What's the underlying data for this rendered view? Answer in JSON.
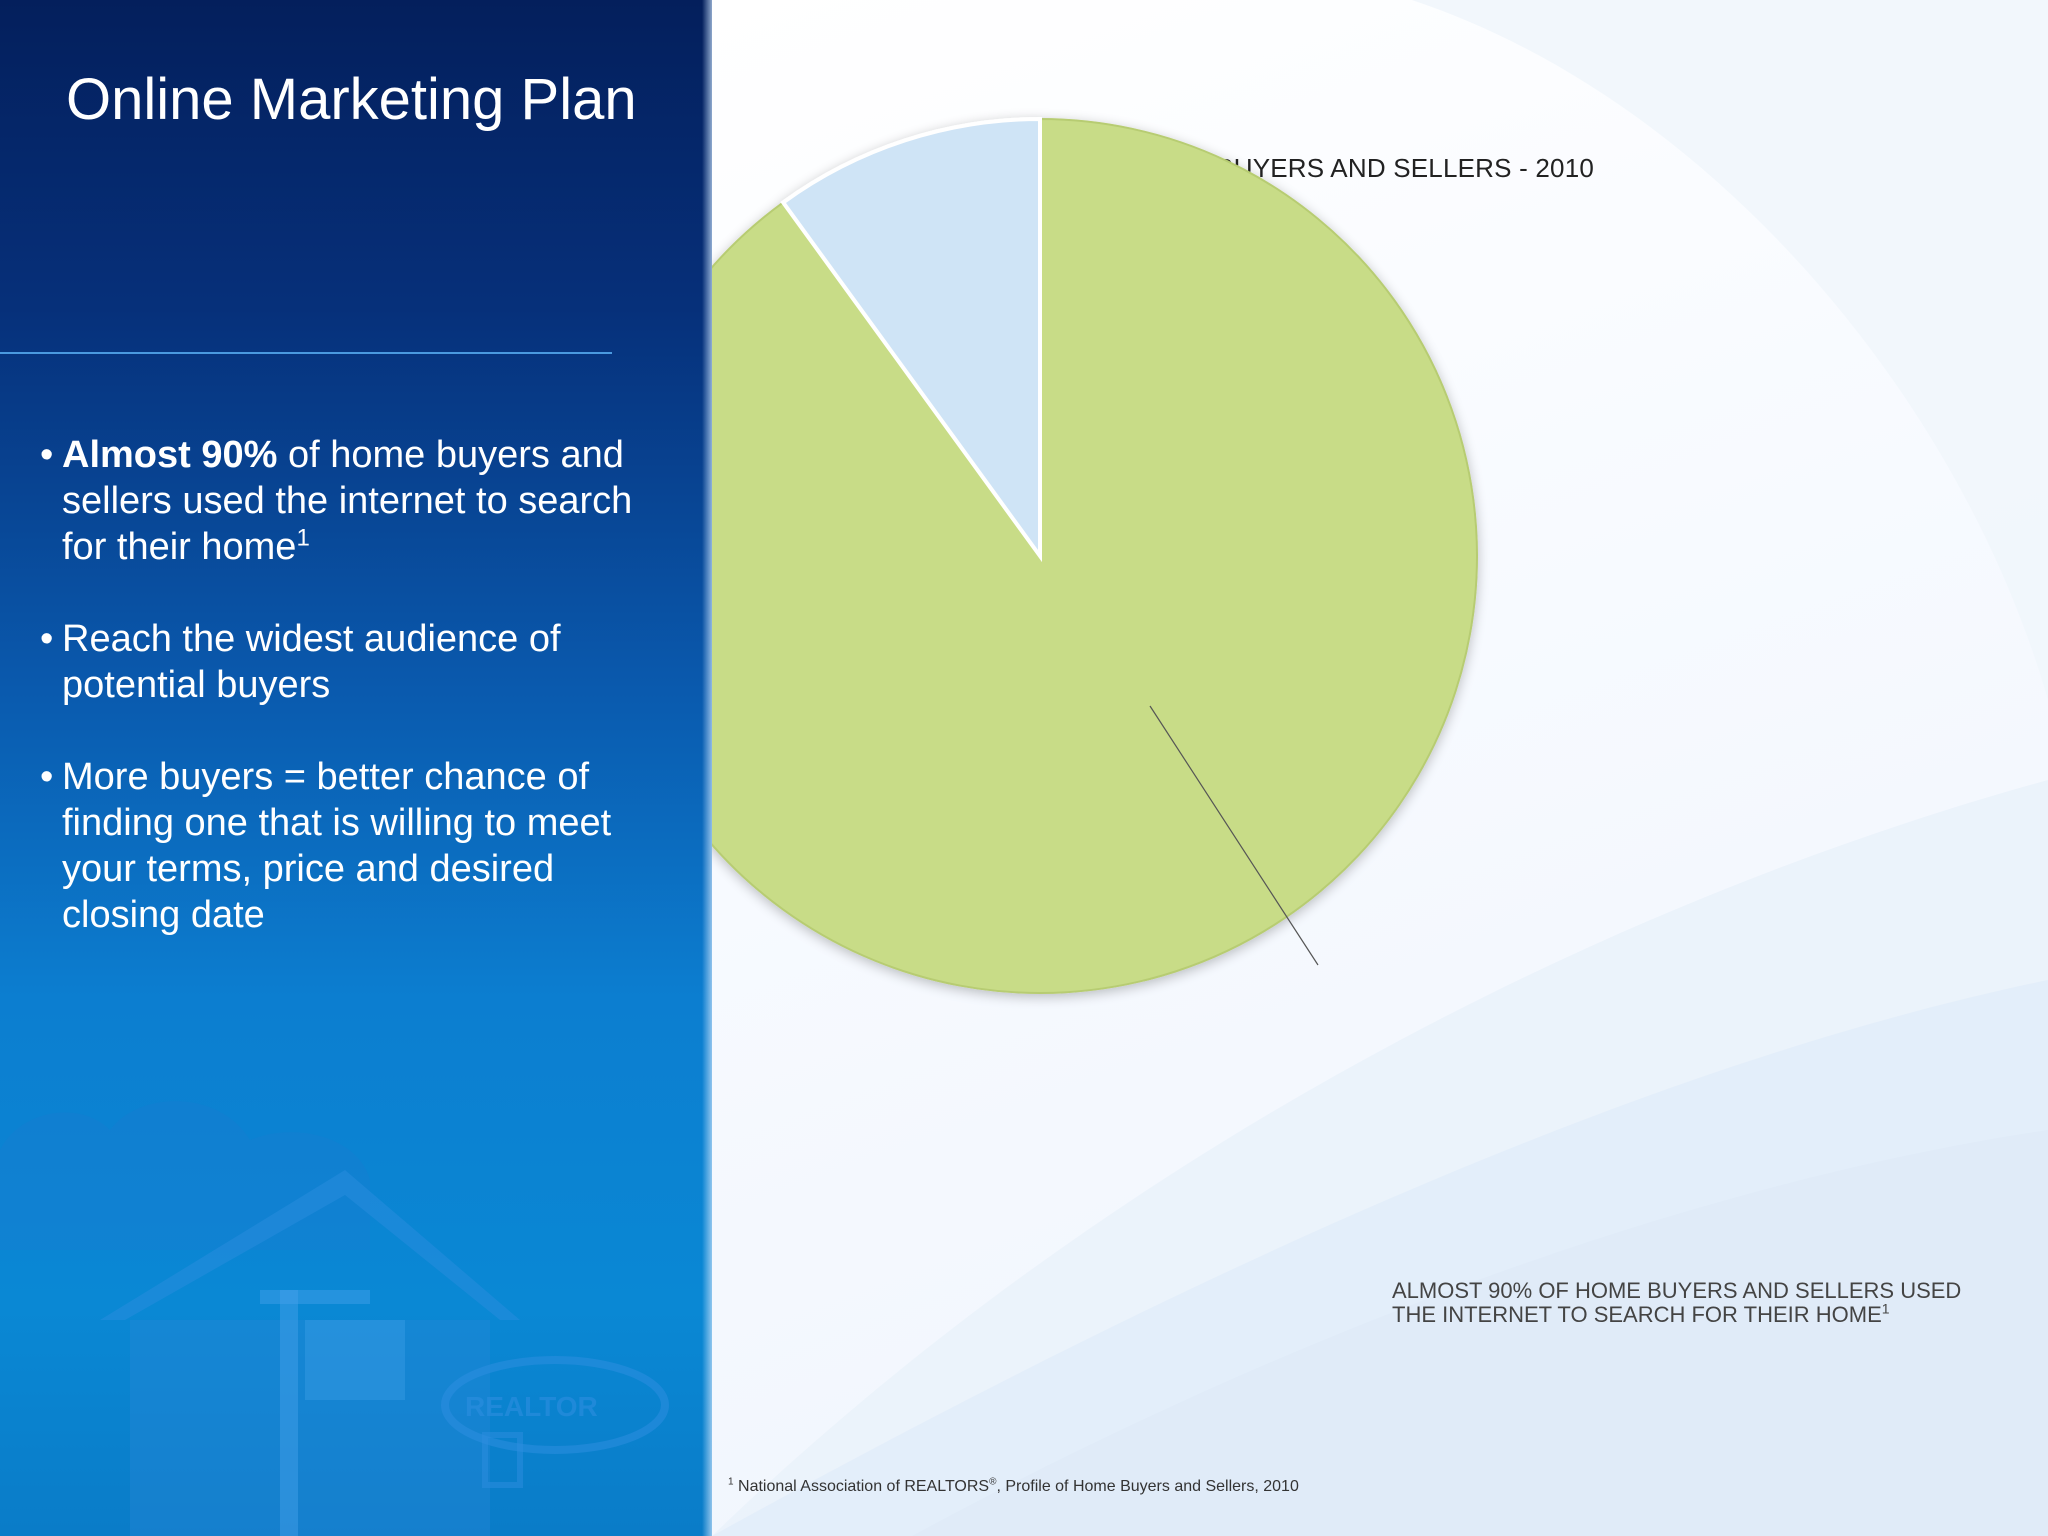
{
  "slide": {
    "title": "Online Marketing Plan",
    "bullets": [
      {
        "bold": "Almost 90%",
        "text": " of home buyers and sellers used the internet to search for their home",
        "sup": "1"
      },
      {
        "bold": "",
        "text": "Reach the widest audience of potential buyers",
        "sup": ""
      },
      {
        "bold": "",
        "text": "More buyers = better chance of finding one that is willing to meet your terms, price and desired closing date",
        "sup": ""
      }
    ],
    "bullet_glyph": "•",
    "footnote": {
      "marker": "1",
      "text_before": " National Association of REALTORS",
      "reg": "®",
      "text_after": ", Profile of Home Buyers and Sellers, 2010"
    },
    "logo_text": "REALTOR",
    "colors": {
      "panel_blue": "#0a5aae",
      "pie_green": "#c8dc87",
      "pie_light_blue": "#cfe4f6"
    }
  },
  "chart_data": {
    "type": "pie",
    "title": "HOME BUYERS AND SELLERS - 2010",
    "slices": [
      {
        "label": "ALMOST 90% OF HOME BUYERS AND SELLERS USED THE INTERNET TO SEARCH FOR THEIR HOME",
        "label_sup": "1",
        "value": 90,
        "color": "#c8dc87"
      },
      {
        "label": "",
        "value": 10,
        "color": "#cfe4f6"
      }
    ],
    "legend": "none",
    "data_label_position": "bottom-right with leader line"
  }
}
